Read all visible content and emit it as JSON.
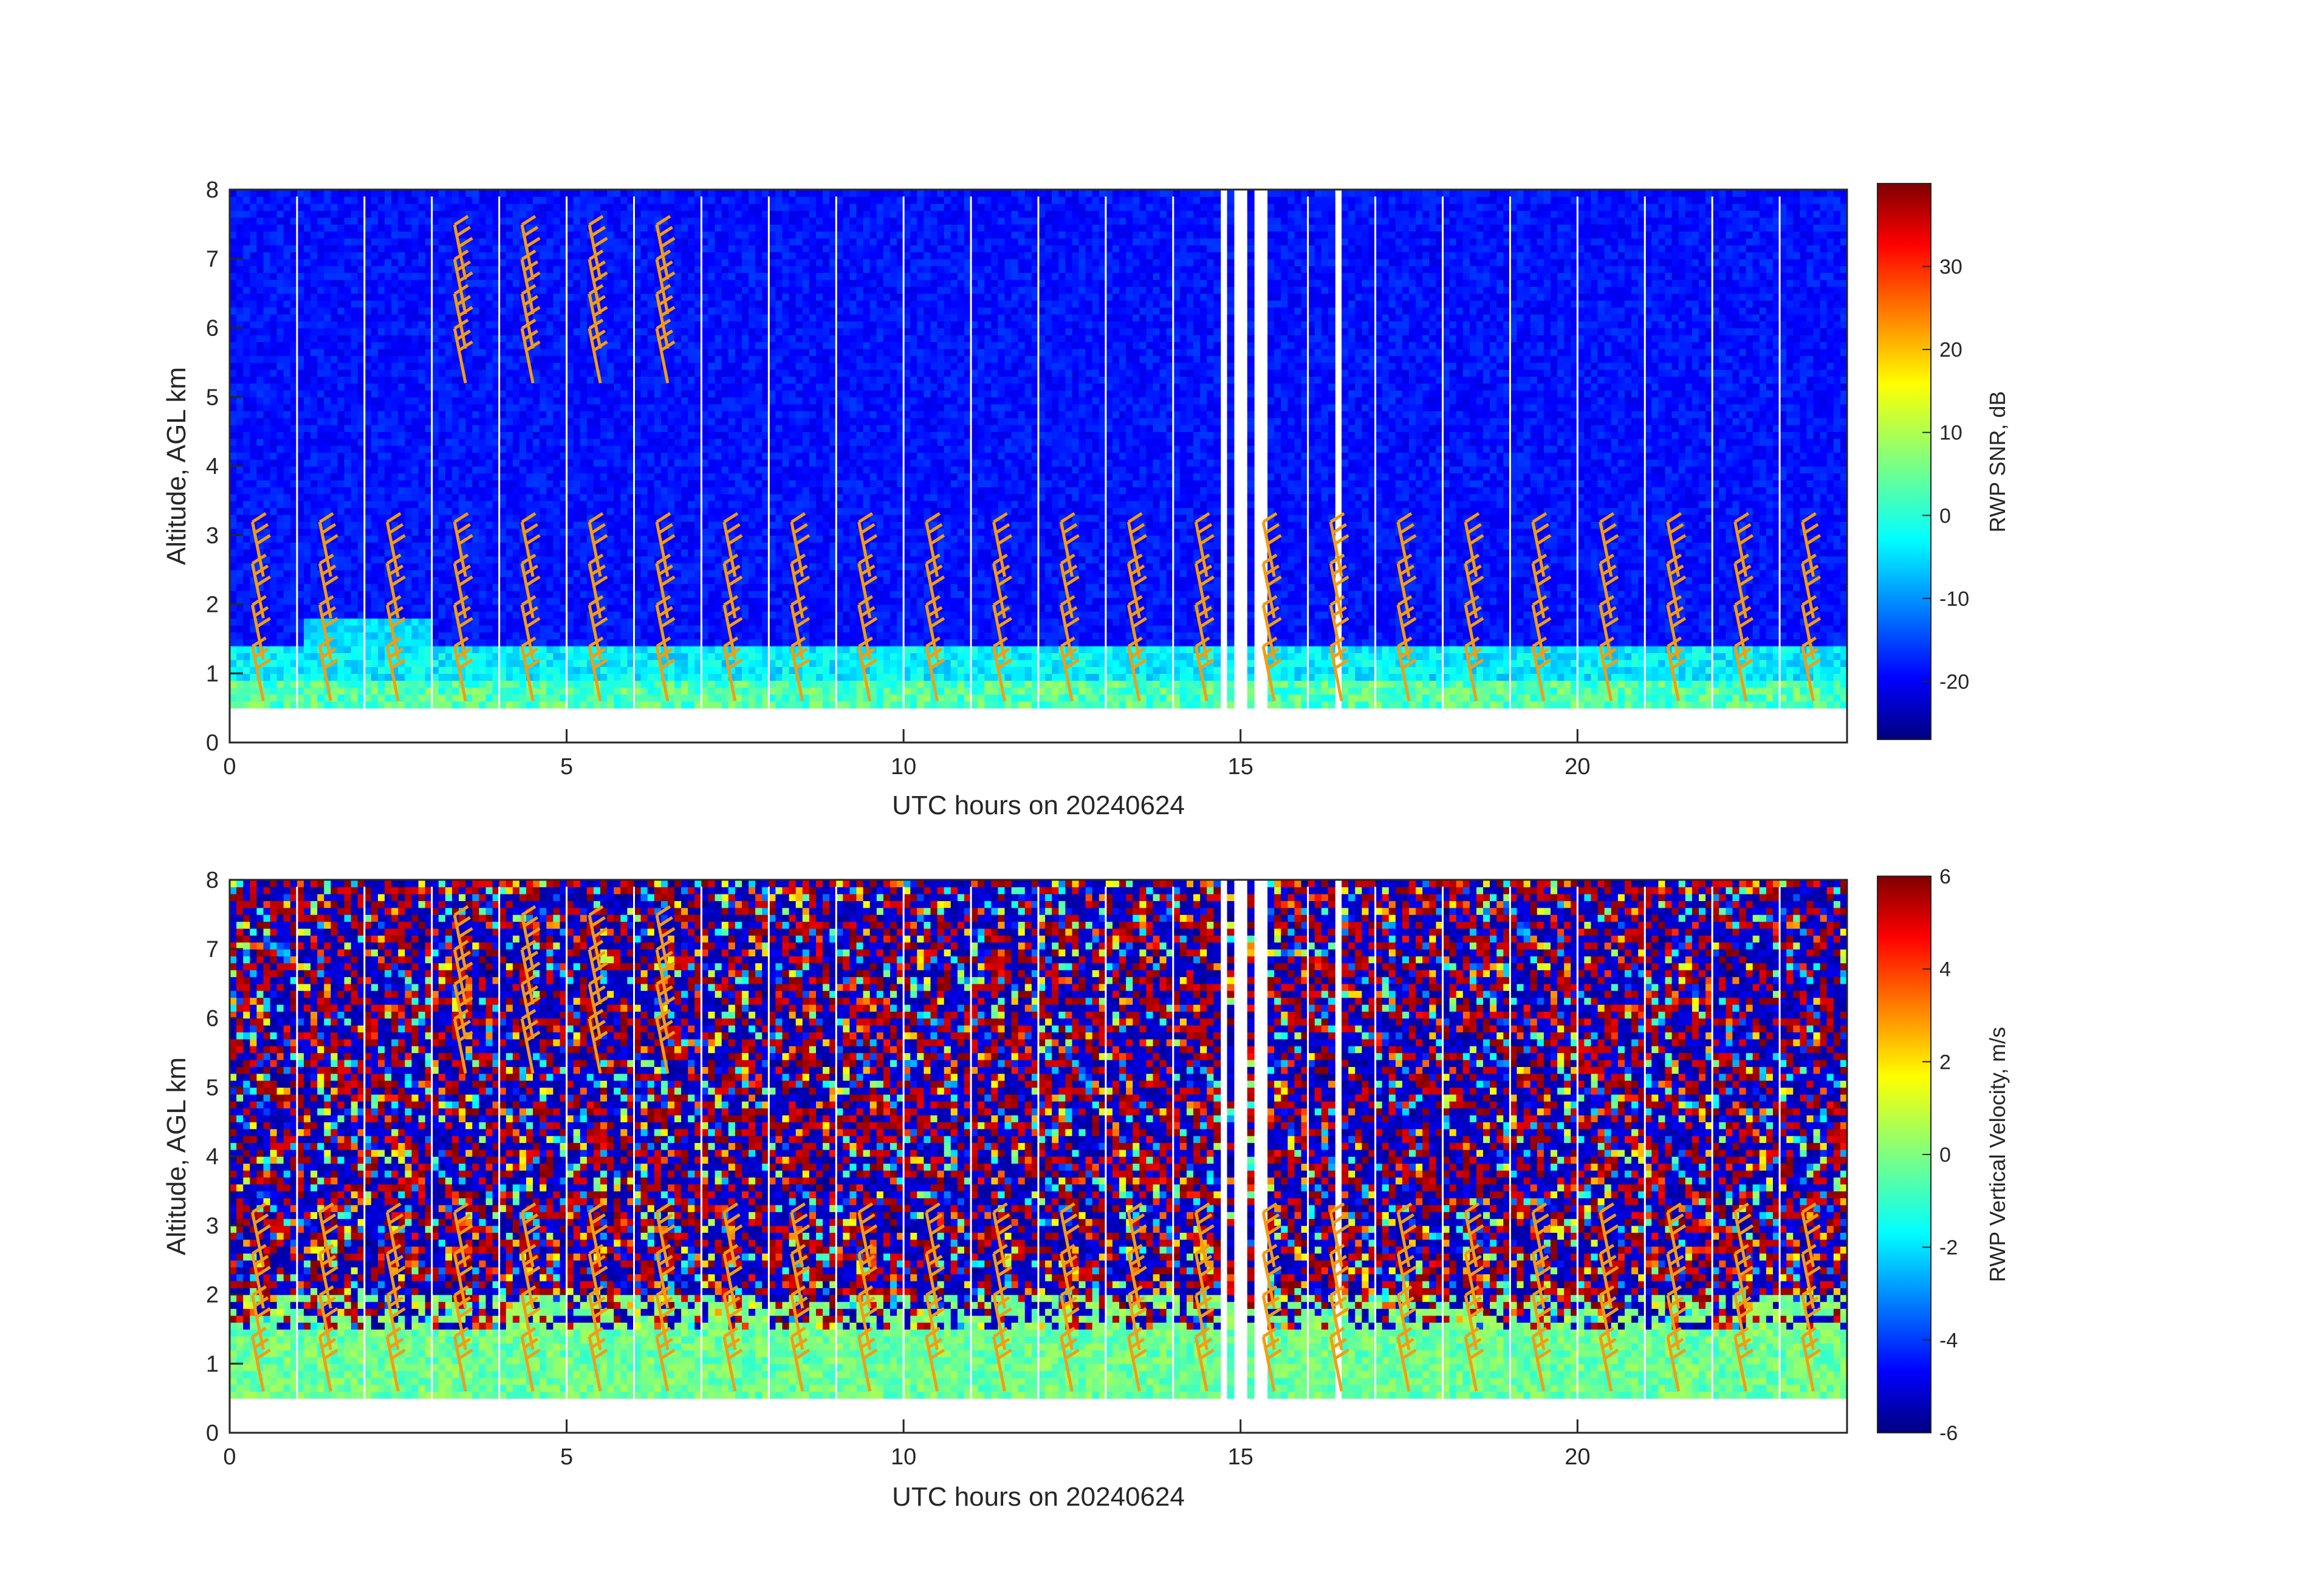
{
  "chart_data": [
    {
      "type": "heatmap",
      "title": "",
      "xlabel": "UTC hours on 20240624",
      "ylabel": "Altitude, AGL km",
      "xlim": [
        0,
        24
      ],
      "ylim": [
        0,
        8
      ],
      "xticks": [
        "0",
        "5",
        "10",
        "15",
        "20"
      ],
      "yticks": [
        "0",
        "1",
        "2",
        "3",
        "4",
        "5",
        "6",
        "7",
        "8"
      ],
      "colorbar": {
        "label": "RWP SNR, dB",
        "range": [
          -27,
          40
        ],
        "ticks": [
          "-20",
          "-10",
          "0",
          "10",
          "20",
          "30"
        ],
        "colormap": "jet"
      },
      "variable": "snr",
      "data_range_km": [
        0.5,
        7.9
      ],
      "missing_hours": [
        [
          14.6,
          14.7
        ],
        [
          14.85,
          15.0
        ],
        [
          15.15,
          15.3
        ],
        [
          16.35,
          16.45
        ]
      ],
      "overlay": {
        "type": "wind-barbs",
        "color": "#f39c12"
      }
    },
    {
      "type": "heatmap",
      "title": "",
      "xlabel": "UTC hours on 20240624",
      "ylabel": "Altitude, AGL km",
      "xlim": [
        0,
        24
      ],
      "ylim": [
        0,
        8
      ],
      "xticks": [
        "0",
        "5",
        "10",
        "15",
        "20"
      ],
      "yticks": [
        "0",
        "1",
        "2",
        "3",
        "4",
        "5",
        "6",
        "7",
        "8"
      ],
      "colorbar": {
        "label": "RWP Vertical Velocity, m/s",
        "range": [
          -6,
          6
        ],
        "ticks": [
          "-6",
          "-4",
          "-2",
          "0",
          "2",
          "4",
          "6"
        ],
        "colormap": "jet"
      },
      "variable": "vertical-velocity",
      "data_range_km": [
        0.5,
        7.9
      ],
      "missing_hours": [
        [
          14.6,
          14.7
        ],
        [
          14.85,
          15.0
        ],
        [
          15.15,
          15.3
        ],
        [
          16.35,
          16.45
        ]
      ],
      "overlay": {
        "type": "wind-barbs",
        "color": "#f39c12"
      }
    }
  ],
  "wind_barb_hours": [
    0.5,
    1.5,
    2.5,
    3.5,
    4.5,
    5.5,
    6.5,
    7.5,
    8.5,
    9.5,
    10.5,
    11.5,
    12.5,
    13.5,
    14.5,
    15.5,
    16.5,
    17.5,
    18.5,
    19.5,
    20.5,
    21.5,
    22.5,
    23.5
  ],
  "wind_barb_upper_hours": [
    3.5,
    4.5,
    5.5,
    6.5
  ],
  "colors": {
    "barb": "#f39c12",
    "axis": "#262626"
  }
}
